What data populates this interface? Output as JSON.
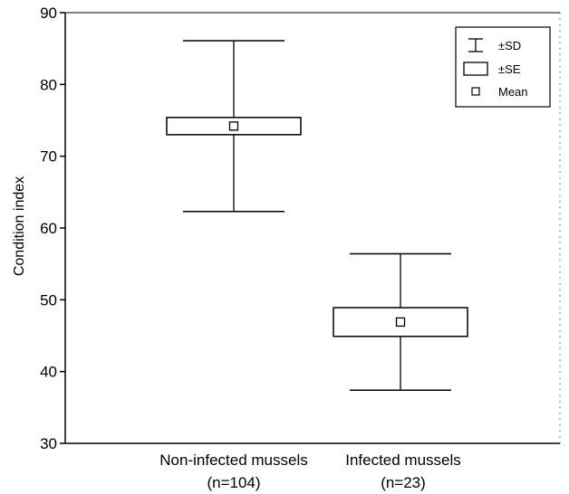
{
  "chart_data": {
    "type": "box",
    "title": "",
    "xlabel": "",
    "ylabel": "Condition index",
    "ylim": [
      30,
      90
    ],
    "yticks": [
      30,
      40,
      50,
      60,
      70,
      80,
      90
    ],
    "grid": false,
    "legend_position": "top-right",
    "legend": [
      {
        "symbol": "whisker",
        "label": "±SD"
      },
      {
        "symbol": "box",
        "label": "±SE"
      },
      {
        "symbol": "square",
        "label": "Mean"
      }
    ],
    "categories": [
      {
        "name": "Non-infected mussels",
        "n_label": "(n=104)",
        "mean": 74.2,
        "se_low": 73.0,
        "se_high": 75.4,
        "sd_low": 62.3,
        "sd_high": 86.1
      },
      {
        "name": "Infected mussels",
        "n_label": "(n=23)",
        "mean": 46.9,
        "se_low": 44.9,
        "se_high": 48.9,
        "sd_low": 37.4,
        "sd_high": 56.4
      }
    ]
  }
}
